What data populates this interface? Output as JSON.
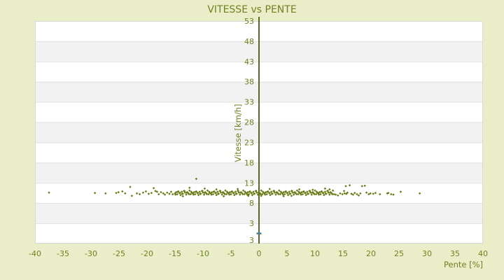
{
  "chart_data": {
    "type": "scatter",
    "title": "VITESSE vs PENTE",
    "xlabel": "Pente [%]",
    "ylabel": "Vitesse [km/h]",
    "xlim": [
      -40,
      40
    ],
    "ylim": [
      -2,
      53
    ],
    "x_ticks": [
      -40,
      -35,
      -30,
      -25,
      -20,
      -15,
      -10,
      -5,
      0,
      5,
      10,
      15,
      20,
      25,
      30,
      35,
      40
    ],
    "y_ticks": [
      53,
      48,
      43,
      38,
      33,
      28,
      23,
      18,
      13,
      8,
      3
    ],
    "y_axis_bottom_label": "3",
    "grid": "horizontal-bands",
    "legend": "none",
    "colors": {
      "page_bg": "#e9eec9",
      "band_light": "#ffffff",
      "band_dark": "#f2f2f2",
      "grid_line": "#e2e2e2",
      "plot_border": "#d9d9d9",
      "axis_line": "#4a580e",
      "text": "#728021",
      "points": "#6b7914",
      "marker_teal": "#4a7d8f"
    },
    "series": [
      {
        "name": "vitesse",
        "marker": "diamond",
        "color": "#6b7914",
        "points": [
          [
            -37.5,
            10.6
          ],
          [
            -29.3,
            10.5
          ],
          [
            -27.4,
            10.4
          ],
          [
            -25.5,
            10.5
          ],
          [
            -25.1,
            10.7
          ],
          [
            -24.4,
            10.9
          ],
          [
            -23.9,
            10.4
          ],
          [
            -23.0,
            12.0
          ],
          [
            -22.7,
            9.8
          ],
          [
            -21.8,
            10.4
          ],
          [
            -21.3,
            10.2
          ],
          [
            -20.7,
            10.6
          ],
          [
            -20.2,
            10.9
          ],
          [
            -19.7,
            10.3
          ],
          [
            -19.2,
            10.5
          ],
          [
            -18.8,
            11.7
          ],
          [
            -18.5,
            11.0
          ],
          [
            -18.2,
            10.8
          ],
          [
            -17.9,
            10.2
          ],
          [
            -17.5,
            10.7
          ],
          [
            -17.1,
            10.4
          ],
          [
            -16.8,
            10.1
          ],
          [
            -16.4,
            10.6
          ],
          [
            -16.0,
            10.3
          ],
          [
            -15.7,
            10.8
          ],
          [
            -15.4,
            10.2
          ],
          [
            -15.0,
            10.4
          ],
          [
            -14.8,
            10.7
          ],
          [
            -14.6,
            10.2
          ],
          [
            -14.4,
            10.9
          ],
          [
            -14.2,
            10.5
          ],
          [
            -14.0,
            10.0
          ],
          [
            -13.8,
            10.8
          ],
          [
            -13.6,
            10.3
          ],
          [
            -13.4,
            11.0
          ],
          [
            -13.2,
            10.6
          ],
          [
            -13.0,
            10.1
          ],
          [
            -12.8,
            10.7
          ],
          [
            -12.6,
            10.4
          ],
          [
            -12.4,
            11.1
          ],
          [
            -12.2,
            10.2
          ],
          [
            -12.0,
            10.6
          ],
          [
            -11.8,
            10.4
          ],
          [
            -11.6,
            10.7
          ],
          [
            -11.4,
            10.2
          ],
          [
            -11.2,
            10.9
          ],
          [
            -11.0,
            10.5
          ],
          [
            -10.8,
            10.0
          ],
          [
            -10.6,
            10.8
          ],
          [
            -10.4,
            10.3
          ],
          [
            -10.2,
            11.0
          ],
          [
            -10.0,
            10.6
          ],
          [
            -9.8,
            10.1
          ],
          [
            -9.6,
            10.7
          ],
          [
            -9.4,
            10.4
          ],
          [
            -9.2,
            11.1
          ],
          [
            -9.0,
            10.2
          ],
          [
            -8.8,
            10.6
          ],
          [
            -8.6,
            10.4
          ],
          [
            -8.4,
            10.7
          ],
          [
            -8.2,
            10.2
          ],
          [
            -8.0,
            10.9
          ],
          [
            -7.8,
            10.5
          ],
          [
            -7.6,
            10.0
          ],
          [
            -7.4,
            10.8
          ],
          [
            -7.2,
            10.3
          ],
          [
            -7.0,
            11.0
          ],
          [
            -6.8,
            10.6
          ],
          [
            -6.6,
            10.1
          ],
          [
            -6.4,
            10.7
          ],
          [
            -6.2,
            10.4
          ],
          [
            -6.0,
            11.1
          ],
          [
            -5.8,
            10.2
          ],
          [
            -5.6,
            10.6
          ],
          [
            -5.4,
            10.4
          ],
          [
            -5.2,
            10.7
          ],
          [
            -5.0,
            10.2
          ],
          [
            -4.8,
            10.9
          ],
          [
            -4.6,
            10.5
          ],
          [
            -4.4,
            10.0
          ],
          [
            -4.2,
            10.8
          ],
          [
            -4.0,
            10.3
          ],
          [
            -3.8,
            11.0
          ],
          [
            -3.6,
            10.6
          ],
          [
            -3.4,
            10.1
          ],
          [
            -3.2,
            10.7
          ],
          [
            -3.0,
            10.4
          ],
          [
            -2.8,
            11.1
          ],
          [
            -2.6,
            10.2
          ],
          [
            -2.4,
            10.6
          ],
          [
            -2.2,
            10.4
          ],
          [
            -2.0,
            10.7
          ],
          [
            -1.8,
            10.2
          ],
          [
            -1.6,
            10.9
          ],
          [
            -1.4,
            10.5
          ],
          [
            -1.2,
            10.0
          ],
          [
            -1.0,
            10.8
          ],
          [
            -0.8,
            10.3
          ],
          [
            -0.6,
            11.0
          ],
          [
            -0.4,
            10.6
          ],
          [
            -0.2,
            10.1
          ],
          [
            0.0,
            10.7
          ],
          [
            0.2,
            10.4
          ],
          [
            0.4,
            11.1
          ],
          [
            0.6,
            10.2
          ],
          [
            0.8,
            10.6
          ],
          [
            1.0,
            10.4
          ],
          [
            1.2,
            10.7
          ],
          [
            1.4,
            10.2
          ],
          [
            1.6,
            10.9
          ],
          [
            1.8,
            10.5
          ],
          [
            2.0,
            10.0
          ],
          [
            2.2,
            10.8
          ],
          [
            2.4,
            10.3
          ],
          [
            2.6,
            11.0
          ],
          [
            2.8,
            10.6
          ],
          [
            3.0,
            10.1
          ],
          [
            3.2,
            10.7
          ],
          [
            3.4,
            10.4
          ],
          [
            3.6,
            11.1
          ],
          [
            3.8,
            10.2
          ],
          [
            4.0,
            10.6
          ],
          [
            4.2,
            10.4
          ],
          [
            4.4,
            10.7
          ],
          [
            4.6,
            10.2
          ],
          [
            4.8,
            10.9
          ],
          [
            5.0,
            10.5
          ],
          [
            5.2,
            10.0
          ],
          [
            5.4,
            10.8
          ],
          [
            5.6,
            10.3
          ],
          [
            5.8,
            11.0
          ],
          [
            6.0,
            10.6
          ],
          [
            6.2,
            10.1
          ],
          [
            6.4,
            10.7
          ],
          [
            6.6,
            10.4
          ],
          [
            6.8,
            11.1
          ],
          [
            7.0,
            10.2
          ],
          [
            7.2,
            10.6
          ],
          [
            7.4,
            10.4
          ],
          [
            7.6,
            10.7
          ],
          [
            7.8,
            10.2
          ],
          [
            8.0,
            10.9
          ],
          [
            8.2,
            10.5
          ],
          [
            8.4,
            10.0
          ],
          [
            8.6,
            10.8
          ],
          [
            8.8,
            10.3
          ],
          [
            9.0,
            11.0
          ],
          [
            9.2,
            10.6
          ],
          [
            9.4,
            10.1
          ],
          [
            9.6,
            10.7
          ],
          [
            9.8,
            10.4
          ],
          [
            10.0,
            11.1
          ],
          [
            10.2,
            10.2
          ],
          [
            10.4,
            10.6
          ],
          [
            10.6,
            10.4
          ],
          [
            10.8,
            10.7
          ],
          [
            11.0,
            10.2
          ],
          [
            11.2,
            10.9
          ],
          [
            11.4,
            10.5
          ],
          [
            11.6,
            10.0
          ],
          [
            11.8,
            10.8
          ],
          [
            12.0,
            10.3
          ],
          [
            12.2,
            11.0
          ],
          [
            12.4,
            10.6
          ],
          [
            12.6,
            10.1
          ],
          [
            12.8,
            10.7
          ],
          [
            13.0,
            10.4
          ],
          [
            13.2,
            11.1
          ],
          [
            13.4,
            10.2
          ],
          [
            -14.9,
            10.1
          ],
          [
            -14.5,
            10.8
          ],
          [
            -14.1,
            10.5
          ],
          [
            -13.7,
            10.3
          ],
          [
            -13.3,
            11.0
          ],
          [
            -12.9,
            10.6
          ],
          [
            -12.5,
            10.2
          ],
          [
            -12.1,
            10.8
          ],
          [
            -11.7,
            10.1
          ],
          [
            -11.3,
            10.8
          ],
          [
            -10.9,
            10.5
          ],
          [
            -10.5,
            10.3
          ],
          [
            -10.1,
            11.0
          ],
          [
            -9.7,
            10.6
          ],
          [
            -9.3,
            10.2
          ],
          [
            -8.9,
            10.8
          ],
          [
            -8.5,
            10.1
          ],
          [
            -8.1,
            10.8
          ],
          [
            -7.7,
            10.5
          ],
          [
            -7.3,
            10.3
          ],
          [
            -6.9,
            11.0
          ],
          [
            -6.5,
            10.6
          ],
          [
            -6.1,
            10.2
          ],
          [
            -5.7,
            10.8
          ],
          [
            -5.3,
            10.1
          ],
          [
            -4.9,
            10.8
          ],
          [
            -4.5,
            10.5
          ],
          [
            -4.1,
            10.3
          ],
          [
            -3.7,
            11.0
          ],
          [
            -3.3,
            10.6
          ],
          [
            -2.9,
            10.2
          ],
          [
            -2.5,
            10.8
          ],
          [
            -2.1,
            10.1
          ],
          [
            -1.7,
            10.8
          ],
          [
            -1.3,
            10.5
          ],
          [
            -0.9,
            10.3
          ],
          [
            -0.5,
            11.0
          ],
          [
            -0.1,
            10.6
          ],
          [
            0.3,
            10.2
          ],
          [
            0.7,
            10.8
          ],
          [
            1.1,
            10.1
          ],
          [
            1.5,
            10.8
          ],
          [
            1.9,
            10.5
          ],
          [
            2.3,
            10.3
          ],
          [
            2.7,
            11.0
          ],
          [
            3.1,
            10.6
          ],
          [
            3.5,
            10.2
          ],
          [
            3.9,
            10.8
          ],
          [
            4.3,
            10.1
          ],
          [
            4.7,
            10.8
          ],
          [
            5.1,
            10.5
          ],
          [
            5.5,
            10.3
          ],
          [
            5.9,
            11.0
          ],
          [
            6.3,
            10.6
          ],
          [
            6.7,
            10.2
          ],
          [
            7.1,
            10.8
          ],
          [
            7.5,
            10.1
          ],
          [
            7.9,
            10.8
          ],
          [
            8.3,
            10.5
          ],
          [
            8.7,
            10.3
          ],
          [
            9.1,
            11.0
          ],
          [
            9.5,
            10.6
          ],
          [
            9.9,
            10.2
          ],
          [
            10.3,
            10.8
          ],
          [
            10.7,
            10.1
          ],
          [
            11.1,
            10.8
          ],
          [
            11.5,
            10.5
          ],
          [
            11.9,
            10.3
          ],
          [
            12.3,
            11.0
          ],
          [
            12.7,
            10.6
          ],
          [
            13.1,
            10.2
          ],
          [
            -13.6,
            9.7
          ],
          [
            -12.4,
            11.8
          ],
          [
            -9.7,
            11.6
          ],
          [
            -7.6,
            11.4
          ],
          [
            -6.3,
            9.7
          ],
          [
            -3.8,
            11.5
          ],
          [
            -1.9,
            9.8
          ],
          [
            0.4,
            9.8
          ],
          [
            1.9,
            11.5
          ],
          [
            4.4,
            9.7
          ],
          [
            5.8,
            9.8
          ],
          [
            7.2,
            11.4
          ],
          [
            9.6,
            11.3
          ],
          [
            11.8,
            11.6
          ],
          [
            12.6,
            11.4
          ],
          [
            -11.2,
            14.0
          ],
          [
            13.7,
            10.1
          ],
          [
            14.1,
            9.9
          ],
          [
            14.5,
            10.4
          ],
          [
            14.9,
            10.2
          ],
          [
            15.2,
            11.0
          ],
          [
            15.3,
            10.4
          ],
          [
            15.5,
            12.2
          ],
          [
            15.6,
            10.3
          ],
          [
            15.8,
            10.6
          ],
          [
            16.2,
            12.4
          ],
          [
            16.5,
            10.3
          ],
          [
            16.8,
            10.1
          ],
          [
            17.1,
            10.5
          ],
          [
            17.5,
            10.2
          ],
          [
            17.8,
            9.9
          ],
          [
            18.1,
            10.4
          ],
          [
            18.4,
            12.2
          ],
          [
            18.9,
            12.3
          ],
          [
            19.2,
            10.6
          ],
          [
            19.6,
            10.2
          ],
          [
            19.9,
            10.4
          ],
          [
            20.4,
            10.3
          ],
          [
            20.8,
            10.5
          ],
          [
            21.6,
            10.2
          ],
          [
            22.9,
            10.4
          ],
          [
            23.1,
            10.5
          ],
          [
            23.6,
            10.2
          ],
          [
            24.0,
            10.1
          ],
          [
            25.3,
            10.8
          ],
          [
            28.7,
            10.4
          ]
        ]
      },
      {
        "name": "axis-marker",
        "marker": "dash",
        "color": "#4a7d8f",
        "points": [
          [
            0,
            0.5
          ]
        ]
      }
    ]
  }
}
